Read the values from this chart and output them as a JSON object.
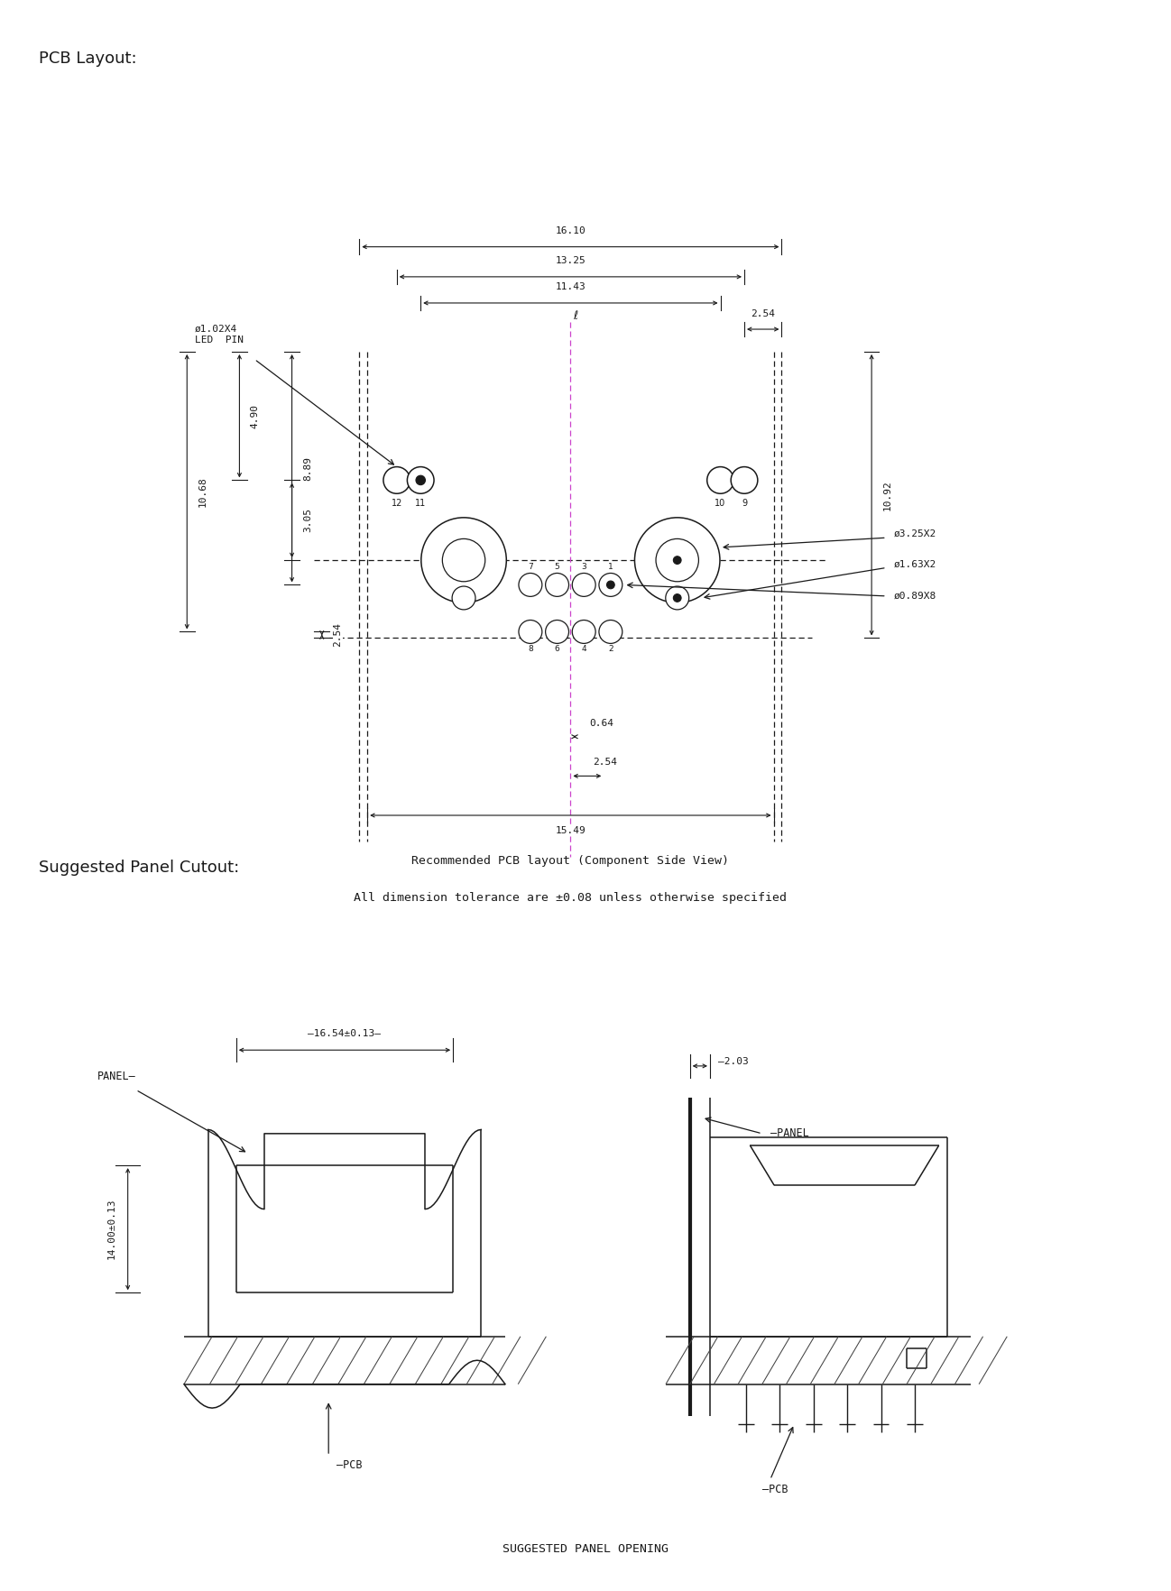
{
  "bg_color": "#ffffff",
  "line_color": "#1a1a1a",
  "dim_color": "#1a1a1a",
  "magenta_color": "#cc44cc",
  "title1": "PCB Layout:",
  "title2": "Suggested Panel Cutout:",
  "caption1": "Recommended PCB layout (Component Side View)",
  "caption2": "All dimension tolerance are ±0.08 unless otherwise specified",
  "caption3": "SUGGESTED PANEL OPENING",
  "dim_16_10": "16.10",
  "dim_13_25": "13.25",
  "dim_11_43": "11.43",
  "dim_2_54a": "2.54",
  "dim_10_92": "10.92",
  "dim_3_05": "3.05",
  "dim_4_90": "4.90",
  "dim_10_68": "10.68",
  "dim_8_89": "8.89",
  "dim_15_49": "15.49",
  "dim_0_64": "0.64",
  "dim_2_54b": "2.54",
  "dim_16_54": "16.54±0.13",
  "dim_14_00": "14.00±0.13",
  "dim_2_03": "2.03",
  "label_led": "ø1.02X4\nLED  PIN",
  "label_d325": "ø3.25X2",
  "label_d163": "ø1.63X2",
  "label_d089": "ø0.89X8",
  "label_panel": "PANEL",
  "label_pcb": "PCB"
}
